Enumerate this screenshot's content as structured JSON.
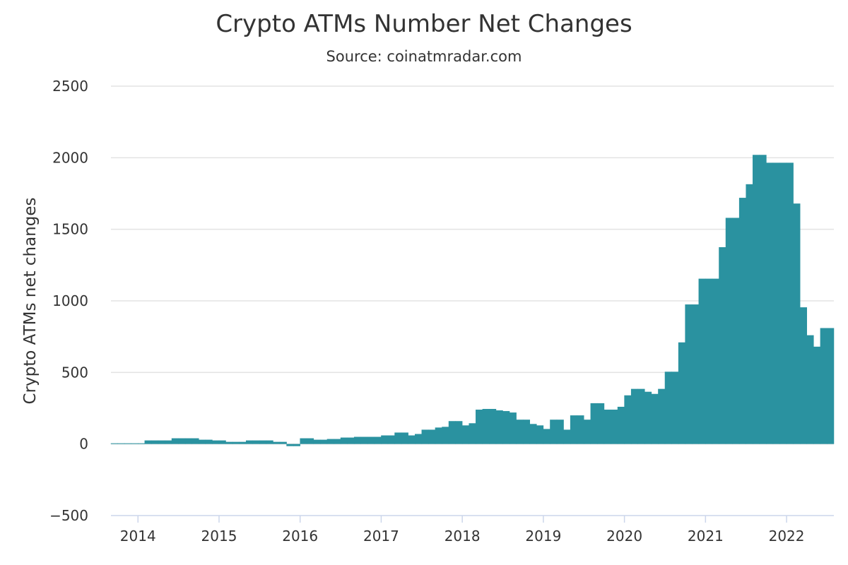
{
  "chart_data": {
    "type": "area",
    "title": "Crypto ATMs Number Net Changes",
    "subtitle": "Source: coinatmradar.com",
    "xlabel": "",
    "ylabel": "Crypto ATMs net changes",
    "ylim": [
      -500,
      2500
    ],
    "yticks": [
      -500,
      0,
      500,
      1000,
      1500,
      2000,
      2500
    ],
    "xticks": [
      "2014",
      "2015",
      "2016",
      "2017",
      "2018",
      "2019",
      "2020",
      "2021",
      "2022"
    ],
    "xlim": [
      "2013-09",
      "2022-07"
    ],
    "grid": true,
    "legend": "none",
    "step": true,
    "color": "#2a92a0",
    "series": [
      {
        "x": [
          "2013-09",
          "2013-10",
          "2013-11",
          "2013-12",
          "2014-01",
          "2014-02",
          "2014-03",
          "2014-04",
          "2014-05",
          "2014-06",
          "2014-07",
          "2014-08",
          "2014-09",
          "2014-10",
          "2014-11",
          "2014-12",
          "2015-01",
          "2015-02",
          "2015-03",
          "2015-04",
          "2015-05",
          "2015-06",
          "2015-07",
          "2015-08",
          "2015-09",
          "2015-10",
          "2015-11",
          "2015-12",
          "2016-01",
          "2016-02",
          "2016-03",
          "2016-04",
          "2016-05",
          "2016-06",
          "2016-07",
          "2016-08",
          "2016-09",
          "2016-10",
          "2016-11",
          "2016-12",
          "2017-01",
          "2017-02",
          "2017-03",
          "2017-04",
          "2017-05",
          "2017-06",
          "2017-07",
          "2017-08",
          "2017-09",
          "2017-10",
          "2017-11",
          "2017-12",
          "2018-01",
          "2018-02",
          "2018-03",
          "2018-04",
          "2018-05",
          "2018-06",
          "2018-07",
          "2018-08",
          "2018-09",
          "2018-10",
          "2018-11",
          "2018-12",
          "2019-01",
          "2019-02",
          "2019-03",
          "2019-04",
          "2019-05",
          "2019-06",
          "2019-07",
          "2019-08",
          "2019-09",
          "2019-10",
          "2019-11",
          "2019-12",
          "2020-01",
          "2020-02",
          "2020-03",
          "2020-04",
          "2020-05",
          "2020-06",
          "2020-07",
          "2020-08",
          "2020-09",
          "2020-10",
          "2020-11",
          "2020-12",
          "2021-01",
          "2021-02",
          "2021-03",
          "2021-04",
          "2021-05",
          "2021-06",
          "2021-07",
          "2021-08",
          "2021-09",
          "2021-10",
          "2021-11",
          "2021-12",
          "2022-01",
          "2022-02",
          "2022-03",
          "2022-04",
          "2022-05",
          "2022-06",
          "2022-07"
        ],
        "values": [
          5,
          5,
          5,
          5,
          5,
          25,
          25,
          25,
          25,
          40,
          40,
          40,
          40,
          30,
          30,
          25,
          25,
          15,
          15,
          15,
          25,
          25,
          25,
          25,
          15,
          15,
          -15,
          -15,
          40,
          40,
          30,
          30,
          35,
          35,
          45,
          45,
          50,
          50,
          50,
          50,
          60,
          60,
          80,
          80,
          60,
          70,
          100,
          100,
          115,
          120,
          160,
          160,
          130,
          145,
          240,
          245,
          245,
          235,
          230,
          220,
          170,
          170,
          140,
          130,
          105,
          170,
          170,
          100,
          200,
          200,
          170,
          285,
          285,
          240,
          240,
          260,
          340,
          385,
          385,
          365,
          350,
          385,
          505,
          505,
          710,
          975,
          975,
          1155,
          1155,
          1155,
          1375,
          1580,
          1580,
          1720,
          1815,
          2020,
          2020,
          1965,
          1965,
          1965,
          1965,
          1680,
          955,
          760,
          680,
          810,
          810
        ]
      }
    ]
  }
}
